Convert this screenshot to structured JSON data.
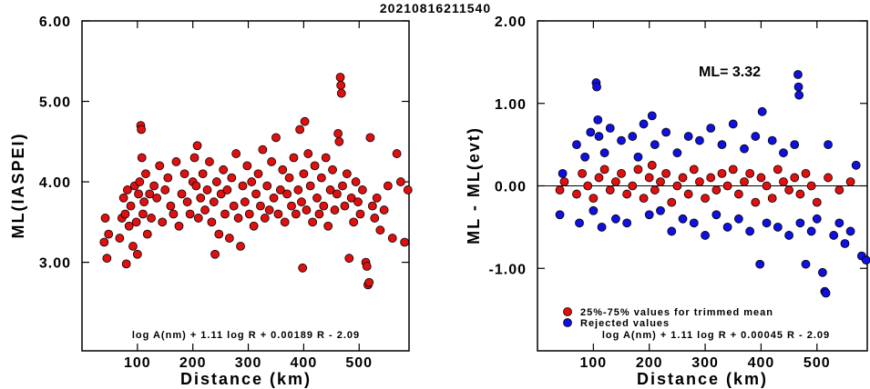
{
  "title": "20210816211540",
  "colors": {
    "kept": "#e01010",
    "rejected": "#1010e0",
    "edge": "#000000"
  },
  "chart_data": [
    {
      "type": "scatter",
      "xlabel": "Distance (km)",
      "ylabel": "ML(IASPEI)",
      "xlim": [
        0,
        590
      ],
      "ylim": [
        1.9,
        6.0
      ],
      "x_ticks": [
        "100",
        "200",
        "300",
        "400",
        "500"
      ],
      "y_ticks": [
        "3.00",
        "4.00",
        "5.00",
        "6.00"
      ],
      "formula": "log A(nm) + 1.11 log R + 0.00189 R - 2.09",
      "series": [
        {
          "points": [
            [
              40,
              3.25
            ],
            [
              42,
              3.55
            ],
            [
              45,
              3.05
            ],
            [
              48,
              3.35
            ],
            [
              68,
              3.3
            ],
            [
              72,
              3.55
            ],
            [
              75,
              3.8
            ],
            [
              78,
              3.6
            ],
            [
              80,
              2.98
            ],
            [
              82,
              3.9
            ],
            [
              85,
              3.45
            ],
            [
              88,
              3.7
            ],
            [
              92,
              3.2
            ],
            [
              95,
              3.95
            ],
            [
              98,
              3.5
            ],
            [
              100,
              3.1
            ],
            [
              102,
              3.85
            ],
            [
              104,
              4.0
            ],
            [
              106,
              4.7
            ],
            [
              107,
              4.65
            ],
            [
              108,
              4.3
            ],
            [
              110,
              3.6
            ],
            [
              112,
              3.75
            ],
            [
              115,
              4.1
            ],
            [
              118,
              3.35
            ],
            [
              122,
              3.85
            ],
            [
              125,
              3.55
            ],
            [
              130,
              3.95
            ],
            [
              135,
              3.8
            ],
            [
              140,
              4.2
            ],
            [
              145,
              3.5
            ],
            [
              150,
              3.9
            ],
            [
              155,
              4.05
            ],
            [
              160,
              3.7
            ],
            [
              165,
              3.6
            ],
            [
              170,
              4.25
            ],
            [
              175,
              3.45
            ],
            [
              180,
              3.85
            ],
            [
              185,
              4.1
            ],
            [
              190,
              3.75
            ],
            [
              195,
              3.6
            ],
            [
              200,
              4.0
            ],
            [
              203,
              4.3
            ],
            [
              206,
              3.95
            ],
            [
              208,
              4.45
            ],
            [
              210,
              3.55
            ],
            [
              214,
              3.8
            ],
            [
              218,
              4.1
            ],
            [
              222,
              3.65
            ],
            [
              226,
              3.9
            ],
            [
              230,
              4.25
            ],
            [
              234,
              3.5
            ],
            [
              238,
              3.75
            ],
            [
              240,
              3.1
            ],
            [
              243,
              4.0
            ],
            [
              247,
              3.35
            ],
            [
              251,
              3.85
            ],
            [
              255,
              4.15
            ],
            [
              258,
              3.6
            ],
            [
              262,
              3.9
            ],
            [
              266,
              3.3
            ],
            [
              270,
              4.05
            ],
            [
              274,
              3.7
            ],
            [
              278,
              4.35
            ],
            [
              282,
              3.55
            ],
            [
              286,
              3.2
            ],
            [
              290,
              3.95
            ],
            [
              294,
              3.75
            ],
            [
              298,
              4.2
            ],
            [
              302,
              3.6
            ],
            [
              306,
              4.0
            ],
            [
              310,
              3.45
            ],
            [
              314,
              3.85
            ],
            [
              318,
              4.1
            ],
            [
              322,
              3.7
            ],
            [
              326,
              4.4
            ],
            [
              330,
              3.55
            ],
            [
              334,
              3.95
            ],
            [
              338,
              3.65
            ],
            [
              342,
              4.25
            ],
            [
              346,
              3.8
            ],
            [
              350,
              4.55
            ],
            [
              354,
              3.6
            ],
            [
              358,
              3.9
            ],
            [
              362,
              4.15
            ],
            [
              366,
              3.5
            ],
            [
              370,
              3.85
            ],
            [
              374,
              4.05
            ],
            [
              378,
              3.7
            ],
            [
              382,
              4.3
            ],
            [
              386,
              3.6
            ],
            [
              390,
              3.9
            ],
            [
              393,
              4.65
            ],
            [
              396,
              3.75
            ],
            [
              398,
              2.93
            ],
            [
              400,
              4.1
            ],
            [
              402,
              4.75
            ],
            [
              405,
              3.65
            ],
            [
              408,
              4.35
            ],
            [
              412,
              3.95
            ],
            [
              416,
              3.5
            ],
            [
              420,
              4.2
            ],
            [
              424,
              3.8
            ],
            [
              428,
              3.6
            ],
            [
              432,
              4.05
            ],
            [
              436,
              3.7
            ],
            [
              440,
              4.3
            ],
            [
              444,
              3.45
            ],
            [
              448,
              3.9
            ],
            [
              452,
              4.15
            ],
            [
              456,
              3.65
            ],
            [
              460,
              3.85
            ],
            [
              462,
              4.6
            ],
            [
              464,
              4.5
            ],
            [
              466,
              5.3
            ],
            [
              467,
              5.2
            ],
            [
              468,
              5.1
            ],
            [
              470,
              3.95
            ],
            [
              474,
              3.7
            ],
            [
              478,
              4.1
            ],
            [
              482,
              3.05
            ],
            [
              486,
              3.8
            ],
            [
              490,
              3.5
            ],
            [
              494,
              4.0
            ],
            [
              498,
              3.75
            ],
            [
              502,
              3.6
            ],
            [
              506,
              3.9
            ],
            [
              512,
              3.0
            ],
            [
              514,
              2.95
            ],
            [
              516,
              2.72
            ],
            [
              518,
              2.75
            ],
            [
              520,
              4.55
            ],
            [
              524,
              3.7
            ],
            [
              528,
              3.55
            ],
            [
              532,
              3.8
            ],
            [
              538,
              3.4
            ],
            [
              545,
              3.65
            ],
            [
              552,
              3.95
            ],
            [
              560,
              3.3
            ],
            [
              568,
              4.35
            ],
            [
              575,
              4.0
            ],
            [
              582,
              3.25
            ],
            [
              588,
              3.9
            ]
          ]
        }
      ]
    },
    {
      "type": "scatter",
      "xlabel": "Distance (km)",
      "ylabel": "ML - ML(evt)",
      "xlim": [
        0,
        590
      ],
      "ylim": [
        -2.0,
        2.0
      ],
      "x_ticks": [
        "100",
        "200",
        "300",
        "400",
        "500"
      ],
      "y_ticks": [
        "-1.00",
        "0.00",
        "1.00",
        "2.00"
      ],
      "ml_text": "ML= 3.32",
      "formula": "log A(nm) + 1.11 log R + 0.00045 R - 2.09",
      "legend": [
        "25%-75% values for trimmed mean",
        "Rejected values"
      ],
      "series": [
        {
          "name": "25%-75% values for trimmed mean",
          "points": [
            [
              40,
              -0.05
            ],
            [
              48,
              0.05
            ],
            [
              70,
              -0.1
            ],
            [
              80,
              0.15
            ],
            [
              90,
              0.0
            ],
            [
              100,
              -0.15
            ],
            [
              110,
              0.1
            ],
            [
              120,
              0.2
            ],
            [
              130,
              -0.05
            ],
            [
              140,
              0.05
            ],
            [
              150,
              0.15
            ],
            [
              160,
              -0.1
            ],
            [
              170,
              0.0
            ],
            [
              180,
              0.2
            ],
            [
              190,
              -0.15
            ],
            [
              200,
              0.1
            ],
            [
              205,
              0.25
            ],
            [
              210,
              -0.05
            ],
            [
              220,
              0.05
            ],
            [
              230,
              0.15
            ],
            [
              240,
              -0.2
            ],
            [
              250,
              0.0
            ],
            [
              260,
              0.1
            ],
            [
              270,
              -0.1
            ],
            [
              280,
              0.2
            ],
            [
              290,
              0.05
            ],
            [
              300,
              -0.15
            ],
            [
              310,
              0.1
            ],
            [
              320,
              -0.05
            ],
            [
              330,
              0.15
            ],
            [
              340,
              0.0
            ],
            [
              350,
              0.2
            ],
            [
              360,
              -0.1
            ],
            [
              370,
              0.05
            ],
            [
              380,
              0.15
            ],
            [
              390,
              -0.2
            ],
            [
              400,
              0.1
            ],
            [
              410,
              0.0
            ],
            [
              420,
              -0.15
            ],
            [
              430,
              0.2
            ],
            [
              440,
              0.05
            ],
            [
              450,
              -0.05
            ],
            [
              460,
              0.1
            ],
            [
              470,
              -0.1
            ],
            [
              480,
              0.15
            ],
            [
              490,
              0.0
            ],
            [
              500,
              -0.2
            ],
            [
              520,
              0.1
            ],
            [
              540,
              -0.05
            ],
            [
              560,
              0.05
            ]
          ]
        },
        {
          "name": "Rejected values",
          "points": [
            [
              40,
              -0.35
            ],
            [
              45,
              0.15
            ],
            [
              70,
              0.5
            ],
            [
              75,
              -0.45
            ],
            [
              85,
              0.35
            ],
            [
              95,
              0.65
            ],
            [
              100,
              -0.3
            ],
            [
              105,
              1.25
            ],
            [
              106,
              1.2
            ],
            [
              108,
              0.8
            ],
            [
              110,
              0.6
            ],
            [
              115,
              -0.5
            ],
            [
              120,
              0.4
            ],
            [
              130,
              0.7
            ],
            [
              140,
              -0.4
            ],
            [
              150,
              0.55
            ],
            [
              160,
              -0.45
            ],
            [
              170,
              0.6
            ],
            [
              180,
              0.35
            ],
            [
              190,
              0.75
            ],
            [
              200,
              -0.35
            ],
            [
              205,
              0.85
            ],
            [
              210,
              0.5
            ],
            [
              220,
              -0.3
            ],
            [
              230,
              0.65
            ],
            [
              240,
              -0.55
            ],
            [
              250,
              0.4
            ],
            [
              260,
              -0.4
            ],
            [
              270,
              0.6
            ],
            [
              280,
              -0.45
            ],
            [
              290,
              0.55
            ],
            [
              300,
              -0.6
            ],
            [
              310,
              0.7
            ],
            [
              320,
              -0.35
            ],
            [
              330,
              0.5
            ],
            [
              340,
              -0.5
            ],
            [
              350,
              0.75
            ],
            [
              360,
              -0.4
            ],
            [
              370,
              0.45
            ],
            [
              380,
              -0.55
            ],
            [
              390,
              0.6
            ],
            [
              398,
              -0.95
            ],
            [
              402,
              0.9
            ],
            [
              410,
              -0.45
            ],
            [
              420,
              0.55
            ],
            [
              430,
              -0.5
            ],
            [
              440,
              0.4
            ],
            [
              450,
              -0.6
            ],
            [
              460,
              0.5
            ],
            [
              466,
              1.35
            ],
            [
              467,
              1.2
            ],
            [
              468,
              1.1
            ],
            [
              470,
              -0.45
            ],
            [
              480,
              -0.95
            ],
            [
              490,
              -0.55
            ],
            [
              500,
              -0.4
            ],
            [
              510,
              -1.05
            ],
            [
              514,
              -1.28
            ],
            [
              516,
              -1.3
            ],
            [
              520,
              0.5
            ],
            [
              530,
              -0.6
            ],
            [
              540,
              -0.45
            ],
            [
              550,
              -0.7
            ],
            [
              560,
              -0.55
            ],
            [
              570,
              0.25
            ],
            [
              580,
              -0.85
            ],
            [
              588,
              -0.9
            ]
          ]
        }
      ]
    }
  ]
}
